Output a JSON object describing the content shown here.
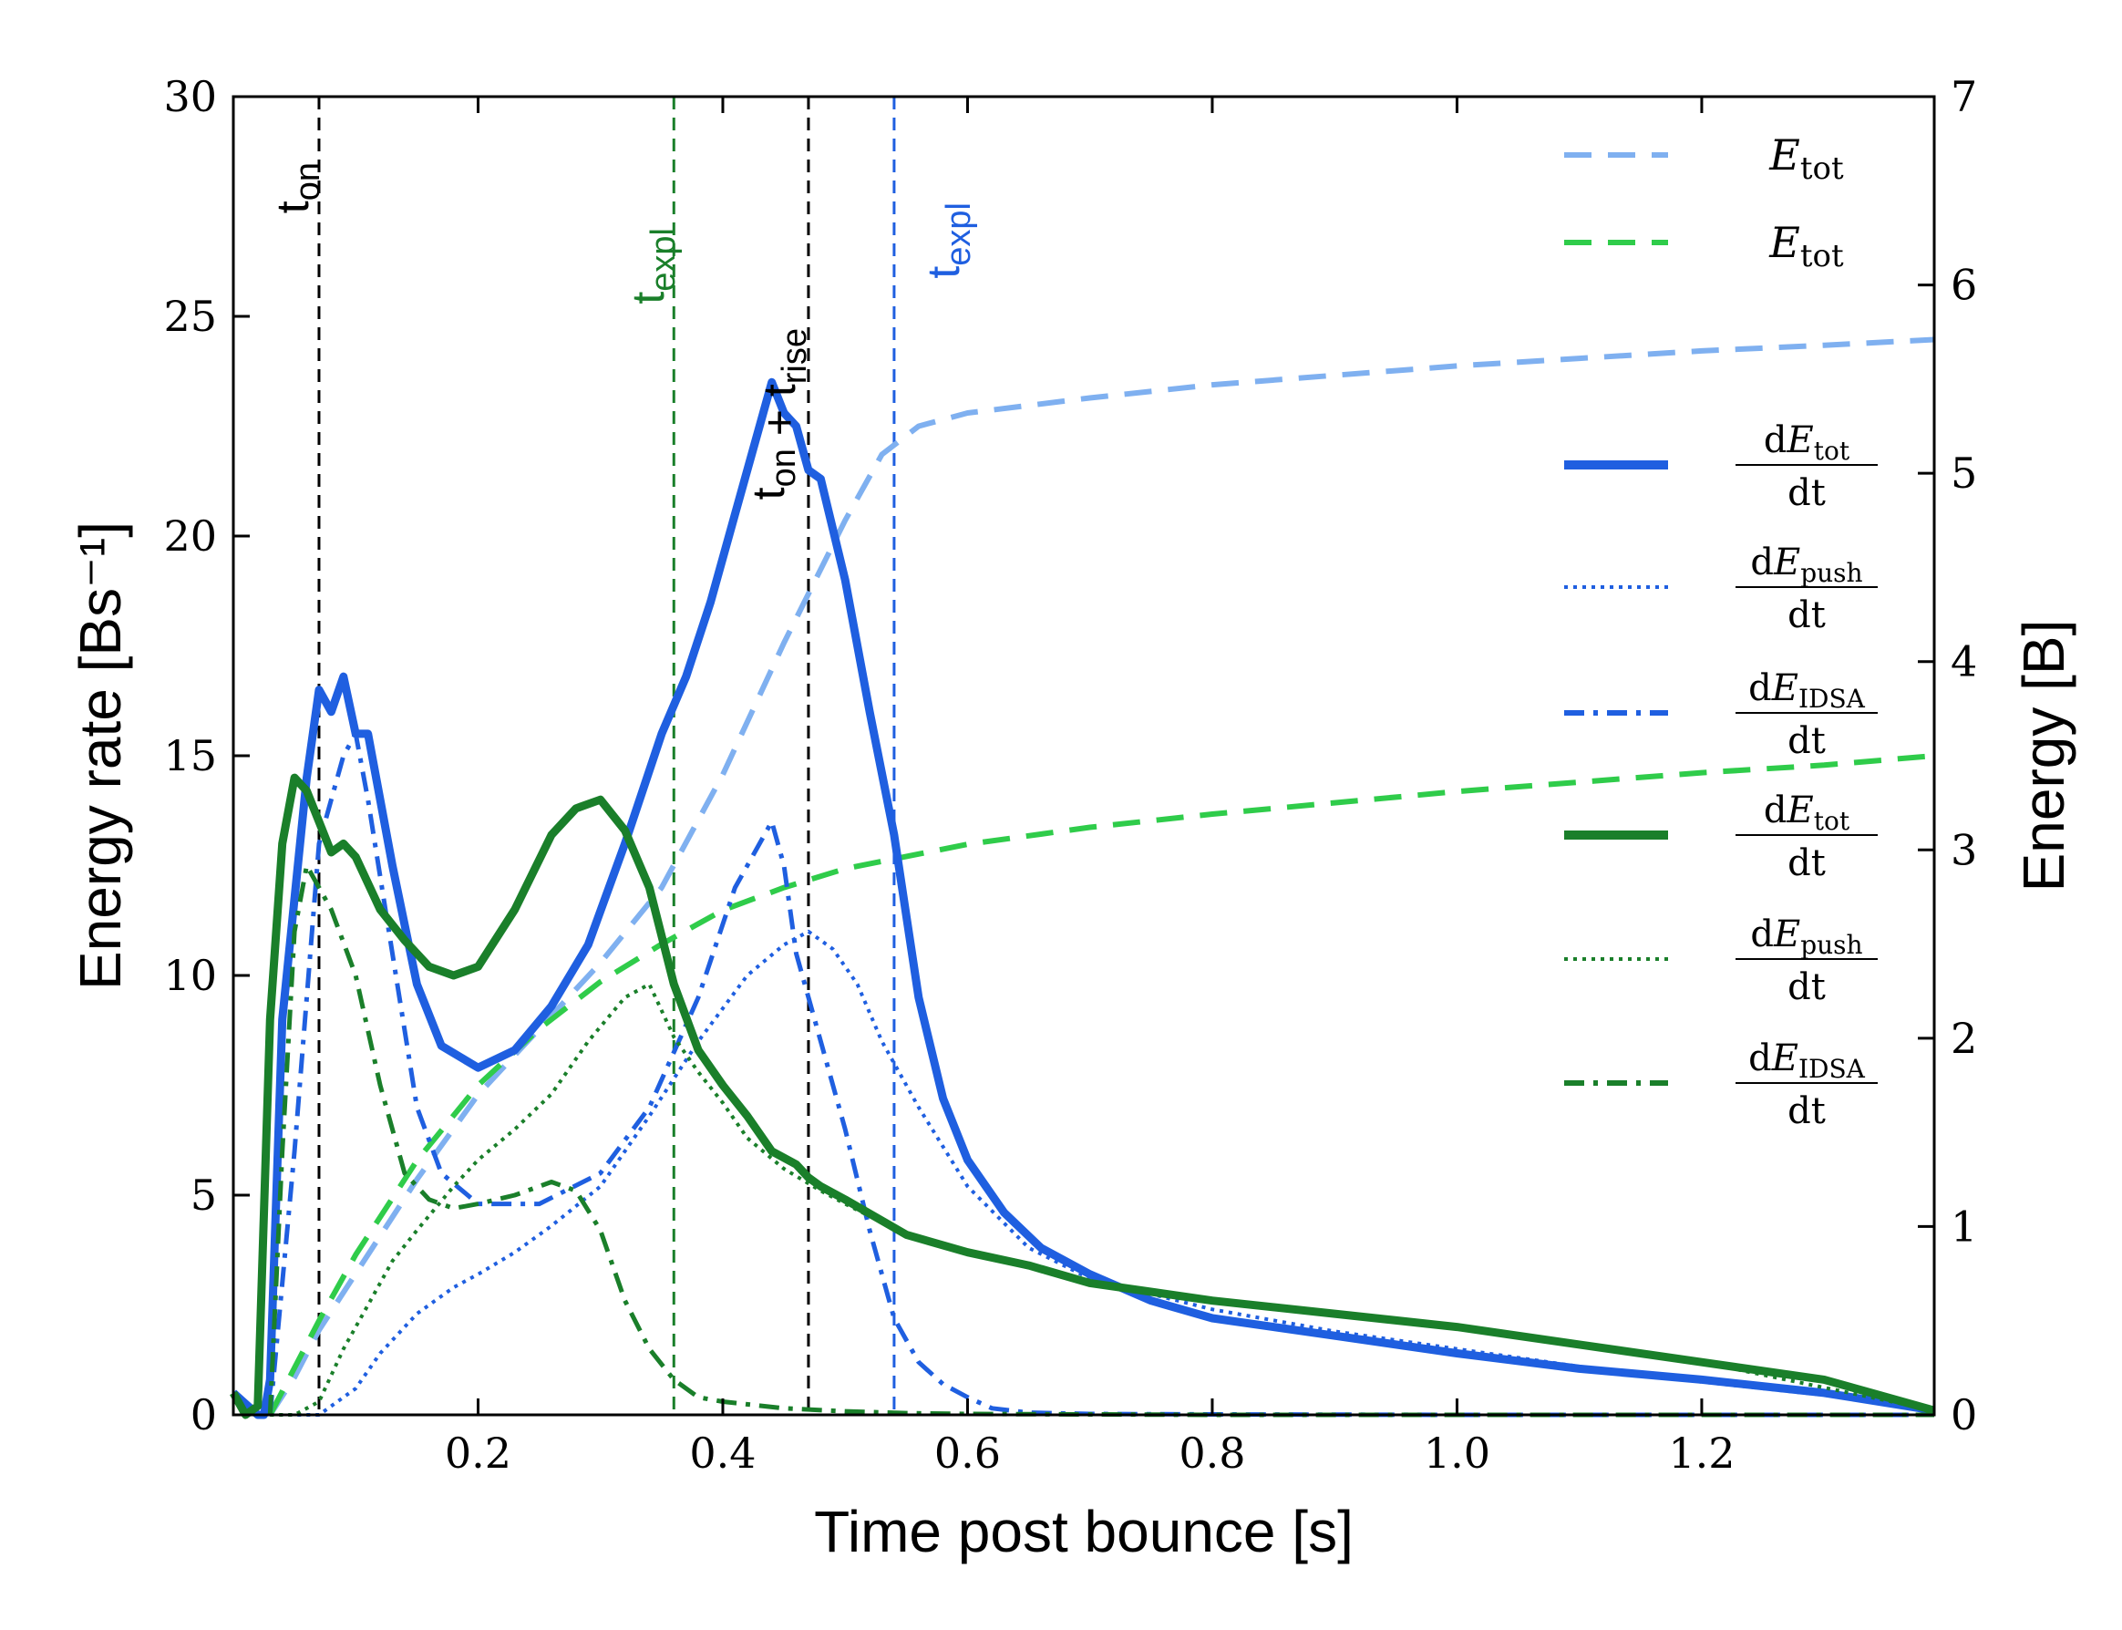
{
  "chart_data": {
    "type": "line",
    "xlabel": "Time post bounce [s]",
    "ylabel": "Energy rate [Bs⁻¹]",
    "y2label": "Energy [B]",
    "xlim": [
      0.0,
      1.39
    ],
    "ylim": [
      0,
      30
    ],
    "y2lim": [
      0,
      7
    ],
    "xticks": [
      0.2,
      0.4,
      0.6,
      0.8,
      1.0,
      1.2
    ],
    "xtick_labels": [
      "0.2",
      "0.4",
      "0.6",
      "0.8",
      "1.0",
      "1.2"
    ],
    "yticks": [
      0,
      5,
      10,
      15,
      20,
      25,
      30
    ],
    "ytick_labels": [
      "0",
      "5",
      "10",
      "15",
      "20",
      "25",
      "30"
    ],
    "y2ticks": [
      0,
      1,
      2,
      3,
      4,
      5,
      6,
      7
    ],
    "y2tick_labels": [
      "0",
      "1",
      "2",
      "3",
      "4",
      "5",
      "6",
      "7"
    ],
    "colors": {
      "blue": "#1f5fe0",
      "blue_light": "#7fb0f0",
      "green": "#1a7f2a",
      "green_light": "#2fcc4a",
      "black": "#000000"
    },
    "vertical_lines": [
      {
        "x": 0.07,
        "label": "t_on",
        "color": "#000000"
      },
      {
        "x": 0.36,
        "label": "t_expl",
        "color": "#1a7f2a"
      },
      {
        "x": 0.47,
        "label": "t_on + t_rise",
        "color": "#000000"
      },
      {
        "x": 0.54,
        "label": "t_expl",
        "color": "#1f5fe0"
      }
    ],
    "series": [
      {
        "name": "E_tot (blue)",
        "axis": "right",
        "style": "dashed",
        "color": "#7fb0f0",
        "width": 6,
        "x": [
          0.03,
          0.05,
          0.07,
          0.1,
          0.15,
          0.2,
          0.25,
          0.3,
          0.35,
          0.4,
          0.45,
          0.5,
          0.53,
          0.56,
          0.6,
          0.7,
          0.8,
          0.9,
          1.0,
          1.1,
          1.2,
          1.3,
          1.39
        ],
        "y": [
          0.0,
          0.2,
          0.45,
          0.75,
          1.25,
          1.7,
          2.05,
          2.4,
          2.8,
          3.4,
          4.1,
          4.75,
          5.1,
          5.25,
          5.32,
          5.4,
          5.47,
          5.52,
          5.57,
          5.61,
          5.65,
          5.68,
          5.71
        ]
      },
      {
        "name": "E_tot (green)",
        "axis": "right",
        "style": "dashed",
        "color": "#2fcc4a",
        "width": 6,
        "x": [
          0.03,
          0.05,
          0.07,
          0.1,
          0.15,
          0.2,
          0.25,
          0.3,
          0.35,
          0.4,
          0.45,
          0.5,
          0.6,
          0.7,
          0.8,
          0.9,
          1.0,
          1.1,
          1.2,
          1.3,
          1.39
        ],
        "y": [
          0.0,
          0.25,
          0.5,
          0.85,
          1.35,
          1.75,
          2.05,
          2.3,
          2.5,
          2.68,
          2.8,
          2.9,
          3.03,
          3.12,
          3.19,
          3.25,
          3.31,
          3.36,
          3.41,
          3.45,
          3.5
        ]
      },
      {
        "name": "dE_tot/dt (blue)",
        "axis": "left",
        "style": "solid",
        "color": "#1f5fe0",
        "width": 9,
        "x": [
          0.0,
          0.02,
          0.025,
          0.03,
          0.04,
          0.06,
          0.07,
          0.08,
          0.09,
          0.1,
          0.11,
          0.13,
          0.15,
          0.17,
          0.2,
          0.23,
          0.26,
          0.29,
          0.32,
          0.35,
          0.37,
          0.39,
          0.41,
          0.43,
          0.44,
          0.45,
          0.46,
          0.47,
          0.48,
          0.5,
          0.52,
          0.54,
          0.56,
          0.58,
          0.6,
          0.63,
          0.66,
          0.7,
          0.75,
          0.8,
          0.9,
          1.0,
          1.1,
          1.2,
          1.3,
          1.39
        ],
        "y": [
          0.5,
          0,
          0,
          0.8,
          9,
          14.5,
          16.5,
          16,
          16.8,
          15.5,
          15.5,
          12.5,
          9.8,
          8.4,
          7.9,
          8.3,
          9.3,
          10.7,
          13,
          15.5,
          16.8,
          18.5,
          20.5,
          22.5,
          23.5,
          22.8,
          22.5,
          21.5,
          21.3,
          19,
          16,
          13.2,
          9.5,
          7.2,
          5.8,
          4.6,
          3.8,
          3.2,
          2.6,
          2.2,
          1.8,
          1.4,
          1.05,
          0.8,
          0.5,
          0.1
        ]
      },
      {
        "name": "dE_push/dt (blue)",
        "axis": "left",
        "style": "dotted",
        "color": "#1f5fe0",
        "width": 4,
        "x": [
          0.03,
          0.05,
          0.07,
          0.1,
          0.12,
          0.15,
          0.18,
          0.2,
          0.23,
          0.26,
          0.3,
          0.34,
          0.38,
          0.42,
          0.45,
          0.47,
          0.49,
          0.51,
          0.53,
          0.56,
          0.6,
          0.65,
          0.7,
          0.8,
          0.9,
          1.0,
          1.1,
          1.2,
          1.3,
          1.39
        ],
        "y": [
          0,
          0,
          0,
          0.6,
          1.4,
          2.3,
          2.9,
          3.2,
          3.7,
          4.3,
          5.2,
          6.8,
          8.5,
          10.0,
          10.7,
          11.0,
          10.6,
          9.8,
          8.5,
          7.0,
          5.2,
          3.8,
          3.1,
          2.4,
          1.9,
          1.5,
          1.1,
          0.75,
          0.45,
          0.1
        ]
      },
      {
        "name": "dE_IDSA/dt (blue)",
        "axis": "left",
        "style": "dashdot",
        "color": "#1f5fe0",
        "width": 5,
        "x": [
          0.03,
          0.05,
          0.07,
          0.09,
          0.1,
          0.11,
          0.13,
          0.15,
          0.17,
          0.2,
          0.25,
          0.3,
          0.34,
          0.38,
          0.41,
          0.43,
          0.44,
          0.45,
          0.46,
          0.48,
          0.5,
          0.52,
          0.54,
          0.56,
          0.58,
          0.6,
          0.62,
          0.65,
          0.7,
          0.8,
          1.0,
          1.2,
          1.39
        ],
        "y": [
          0,
          6,
          13,
          15,
          15.5,
          14,
          10.5,
          7,
          5.5,
          4.8,
          4.8,
          5.5,
          7,
          9.5,
          12,
          13,
          13.5,
          12.5,
          10.5,
          8.5,
          6.5,
          4.2,
          2.2,
          1.2,
          0.7,
          0.4,
          0.15,
          0.05,
          0.02,
          0.01,
          0,
          0,
          0
        ]
      },
      {
        "name": "dE_tot/dt (green)",
        "axis": "left",
        "style": "solid",
        "color": "#1a7f2a",
        "width": 9,
        "x": [
          0.0,
          0.01,
          0.02,
          0.03,
          0.04,
          0.05,
          0.06,
          0.07,
          0.08,
          0.09,
          0.1,
          0.12,
          0.14,
          0.16,
          0.18,
          0.2,
          0.23,
          0.26,
          0.28,
          0.3,
          0.32,
          0.34,
          0.36,
          0.38,
          0.4,
          0.42,
          0.44,
          0.46,
          0.47,
          0.48,
          0.5,
          0.55,
          0.6,
          0.65,
          0.7,
          0.8,
          0.9,
          1.0,
          1.1,
          1.2,
          1.3,
          1.39
        ],
        "y": [
          0.5,
          0,
          0.2,
          9,
          13,
          14.5,
          14.2,
          13.5,
          12.8,
          13,
          12.7,
          11.5,
          10.8,
          10.2,
          10,
          10.2,
          11.5,
          13.2,
          13.8,
          14,
          13.3,
          12,
          9.8,
          8.3,
          7.5,
          6.8,
          6.0,
          5.7,
          5.4,
          5.2,
          4.9,
          4.1,
          3.7,
          3.4,
          3.0,
          2.6,
          2.3,
          2.0,
          1.6,
          1.2,
          0.8,
          0.1
        ]
      },
      {
        "name": "dE_push/dt (green)",
        "axis": "left",
        "style": "dotted",
        "color": "#1a7f2a",
        "width": 4,
        "x": [
          0.03,
          0.05,
          0.07,
          0.09,
          0.11,
          0.13,
          0.15,
          0.18,
          0.2,
          0.23,
          0.26,
          0.29,
          0.32,
          0.34,
          0.36,
          0.38,
          0.4,
          0.42,
          0.45,
          0.48,
          0.5,
          0.55,
          0.6,
          0.7,
          0.8,
          1.0,
          1.2,
          1.39
        ],
        "y": [
          0,
          0,
          0.3,
          1.5,
          2.5,
          3.5,
          4.2,
          5.2,
          5.8,
          6.5,
          7.3,
          8.5,
          9.5,
          9.8,
          8.6,
          7.8,
          7.1,
          6.3,
          5.6,
          5.1,
          4.8,
          4.1,
          3.7,
          3.0,
          2.6,
          2.0,
          1.2,
          0.1
        ]
      },
      {
        "name": "dE_IDSA/dt (green)",
        "axis": "left",
        "style": "dashdot",
        "color": "#1a7f2a",
        "width": 5,
        "x": [
          0.03,
          0.04,
          0.05,
          0.06,
          0.07,
          0.08,
          0.1,
          0.12,
          0.14,
          0.16,
          0.18,
          0.2,
          0.23,
          0.26,
          0.28,
          0.3,
          0.32,
          0.34,
          0.36,
          0.38,
          0.4,
          0.45,
          0.5,
          0.55,
          0.6,
          0.8,
          1.0,
          1.2,
          1.39
        ],
        "y": [
          0,
          6,
          11,
          12.5,
          12,
          11.5,
          10,
          7.5,
          5.5,
          4.9,
          4.7,
          4.8,
          5.0,
          5.3,
          5.1,
          4.2,
          2.6,
          1.5,
          0.8,
          0.4,
          0.3,
          0.15,
          0.08,
          0.04,
          0.02,
          0,
          0,
          0,
          0
        ]
      }
    ],
    "legend": {
      "placement": "right",
      "entries": [
        {
          "label": "E",
          "sub": "tot",
          "color": "#7fb0f0",
          "style": "dashed"
        },
        {
          "label": "E",
          "sub": "tot",
          "color": "#2fcc4a",
          "style": "dashed"
        },
        {
          "label": "dE",
          "sub": "tot",
          "den": "dt",
          "color": "#1f5fe0",
          "style": "solid"
        },
        {
          "label": "dE",
          "sub": "push",
          "den": "dt",
          "color": "#1f5fe0",
          "style": "dotted"
        },
        {
          "label": "dE",
          "sub": "IDSA",
          "den": "dt",
          "color": "#1f5fe0",
          "style": "dashdot"
        },
        {
          "label": "dE",
          "sub": "tot",
          "den": "dt",
          "color": "#1a7f2a",
          "style": "solid"
        },
        {
          "label": "dE",
          "sub": "push",
          "den": "dt",
          "color": "#1a7f2a",
          "style": "dotted"
        },
        {
          "label": "dE",
          "sub": "IDSA",
          "den": "dt",
          "color": "#1a7f2a",
          "style": "dashdot"
        }
      ]
    }
  }
}
